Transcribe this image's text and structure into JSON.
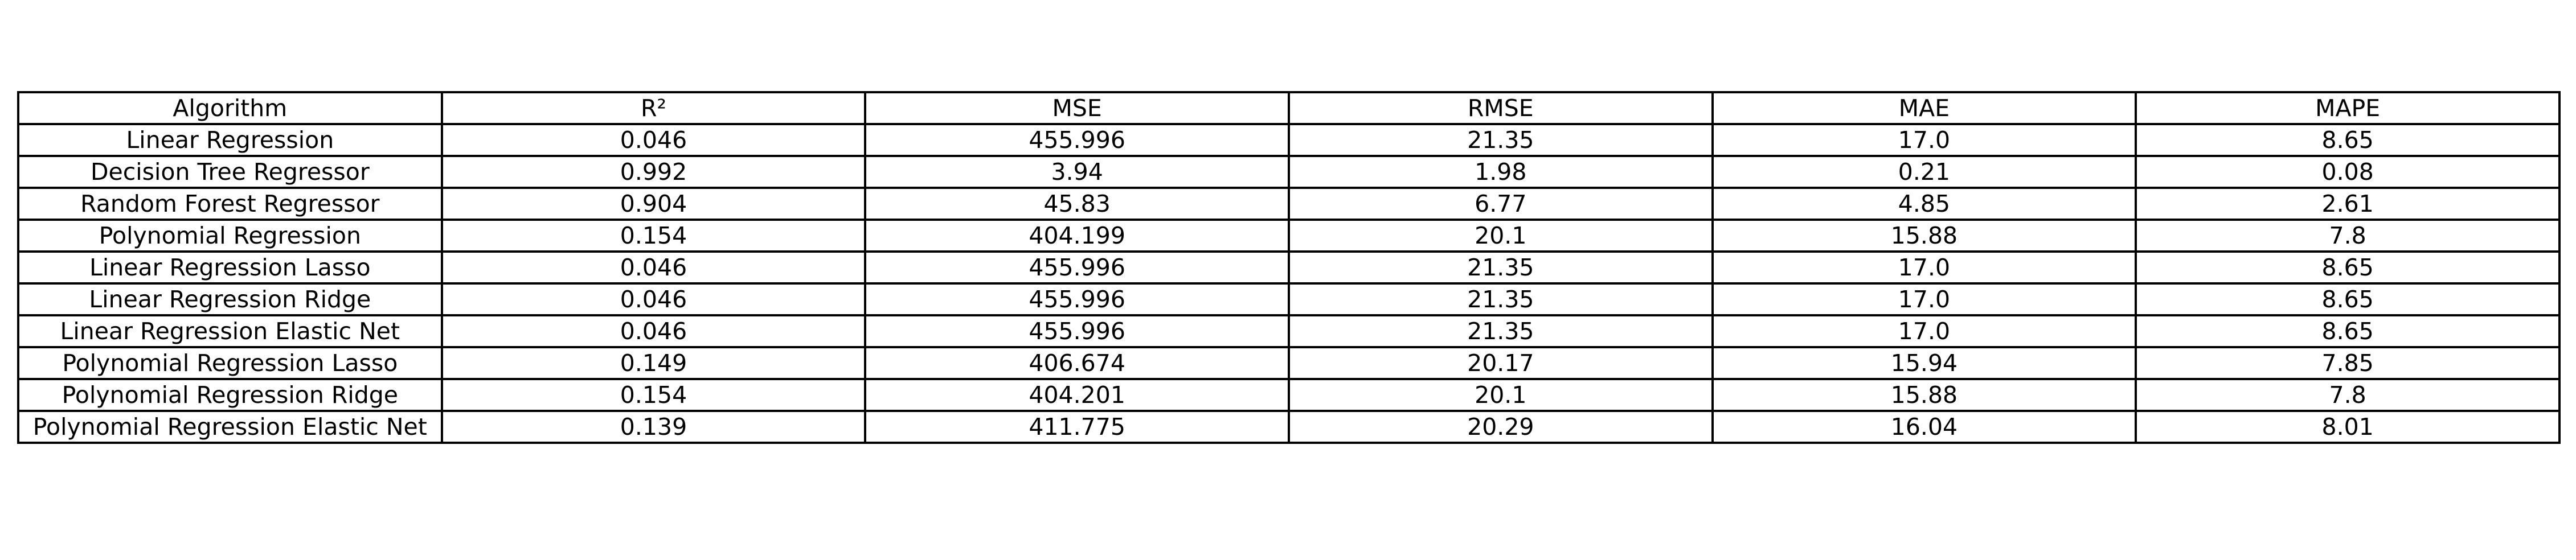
{
  "chart_data": {
    "type": "table",
    "columns": [
      "Algorithm",
      "R²",
      "MSE",
      "RMSE",
      "MAE",
      "MAPE"
    ],
    "rows": [
      [
        "Linear Regression",
        "0.046",
        "455.996",
        "21.35",
        "17.0",
        "8.65"
      ],
      [
        "Decision Tree Regressor",
        "0.992",
        "3.94",
        "1.98",
        "0.21",
        "0.08"
      ],
      [
        "Random Forest Regressor",
        "0.904",
        "45.83",
        "6.77",
        "4.85",
        "2.61"
      ],
      [
        "Polynomial Regression",
        "0.154",
        "404.199",
        "20.1",
        "15.88",
        "7.8"
      ],
      [
        "Linear Regression Lasso",
        "0.046",
        "455.996",
        "21.35",
        "17.0",
        "8.65"
      ],
      [
        "Linear Regression Ridge",
        "0.046",
        "455.996",
        "21.35",
        "17.0",
        "8.65"
      ],
      [
        "Linear Regression Elastic Net",
        "0.046",
        "455.996",
        "21.35",
        "17.0",
        "8.65"
      ],
      [
        "Polynomial Regression Lasso",
        "0.149",
        "406.674",
        "20.17",
        "15.94",
        "7.85"
      ],
      [
        "Polynomial Regression Ridge",
        "0.154",
        "404.201",
        "20.1",
        "15.88",
        "7.8"
      ],
      [
        "Polynomial Regression Elastic Net",
        "0.139",
        "411.775",
        "20.29",
        "16.04",
        "8.01"
      ]
    ]
  }
}
